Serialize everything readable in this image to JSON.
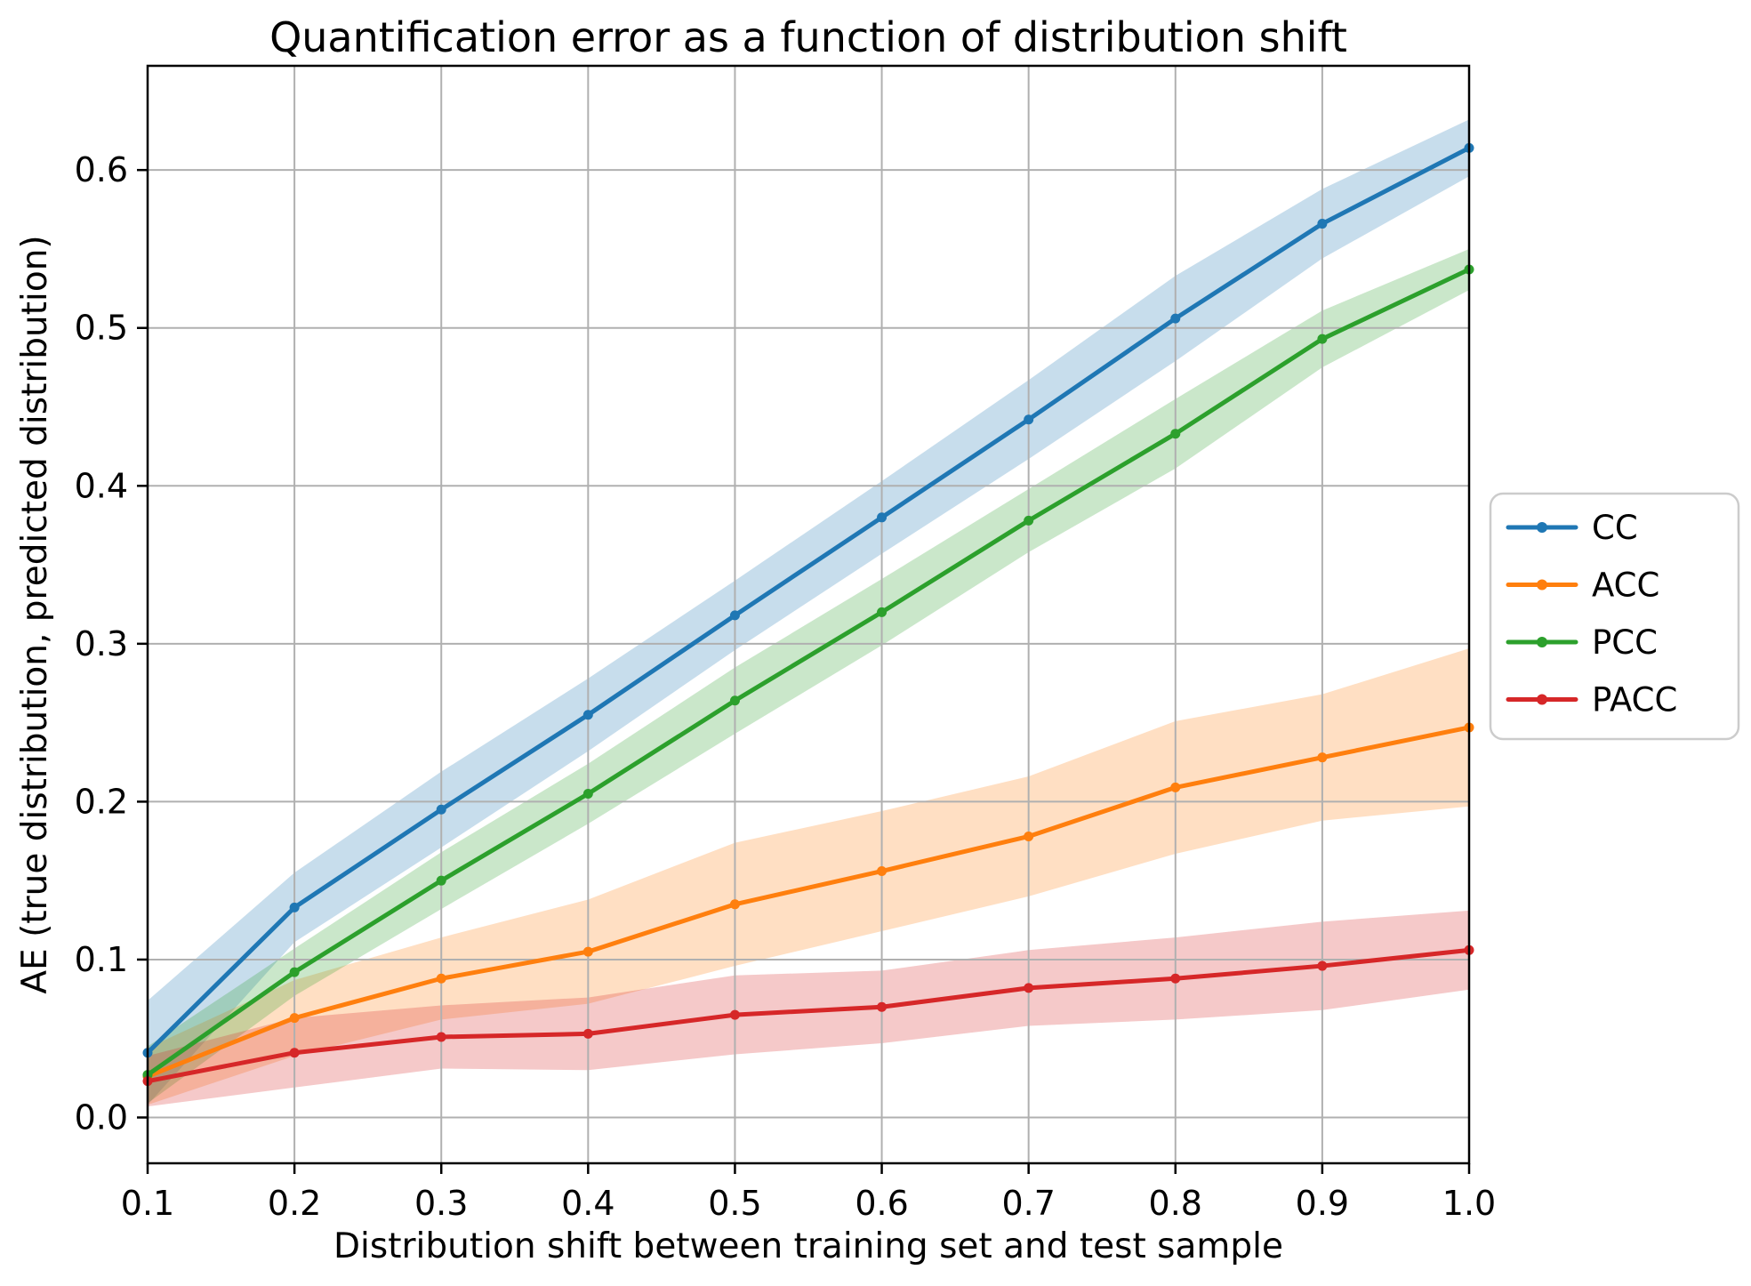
{
  "page": {
    "background": "#ffffff"
  },
  "chart_data": {
    "type": "line",
    "title": "Quantification error as a function of distribution shift",
    "xlabel": "Distribution shift between training set and test sample",
    "ylabel": "AE (true distribution, predicted distribution)",
    "x": [
      0.1,
      0.2,
      0.3,
      0.4,
      0.5,
      0.6,
      0.7,
      0.8,
      0.9,
      1.0
    ],
    "xlim": [
      0.1,
      1.0
    ],
    "ylim": [
      -0.029,
      0.666
    ],
    "xticks": [
      0.1,
      0.2,
      0.3,
      0.4,
      0.5,
      0.6,
      0.7,
      0.8,
      0.9,
      1.0
    ],
    "xtick_labels": [
      "0.1",
      "0.2",
      "0.3",
      "0.4",
      "0.5",
      "0.6",
      "0.7",
      "0.8",
      "0.9",
      "1.0"
    ],
    "yticks": [
      0.0,
      0.1,
      0.2,
      0.3,
      0.4,
      0.5,
      0.6
    ],
    "ytick_labels": [
      "0.0",
      "0.1",
      "0.2",
      "0.3",
      "0.4",
      "0.5",
      "0.6"
    ],
    "grid": true,
    "grid_color": "#b0b0b0",
    "spine_color": "#000000",
    "band_opacity": 0.25,
    "legend": {
      "position": "outside-right",
      "items": [
        "CC",
        "ACC",
        "PCC",
        "PACC"
      ],
      "border_color": "#cccccc",
      "background": "#ffffff"
    },
    "series": [
      {
        "name": "CC",
        "color": "#1f77b4",
        "values": [
          0.041,
          0.133,
          0.195,
          0.255,
          0.318,
          0.38,
          0.442,
          0.506,
          0.566,
          0.614
        ],
        "band_lower": [
          0.008,
          0.111,
          0.171,
          0.232,
          0.296,
          0.357,
          0.417,
          0.479,
          0.544,
          0.596
        ],
        "band_upper": [
          0.074,
          0.155,
          0.219,
          0.278,
          0.34,
          0.403,
          0.467,
          0.533,
          0.588,
          0.632
        ]
      },
      {
        "name": "ACC",
        "color": "#ff7f0e",
        "values": [
          0.026,
          0.063,
          0.088,
          0.105,
          0.135,
          0.156,
          0.178,
          0.209,
          0.228,
          0.247
        ],
        "band_lower": [
          0.008,
          0.039,
          0.062,
          0.072,
          0.096,
          0.118,
          0.14,
          0.167,
          0.188,
          0.197
        ],
        "band_upper": [
          0.044,
          0.087,
          0.114,
          0.138,
          0.174,
          0.194,
          0.216,
          0.251,
          0.268,
          0.297
        ]
      },
      {
        "name": "PCC",
        "color": "#2ca02c",
        "values": [
          0.027,
          0.092,
          0.15,
          0.205,
          0.264,
          0.32,
          0.378,
          0.433,
          0.493,
          0.537
        ],
        "band_lower": [
          0.009,
          0.077,
          0.132,
          0.186,
          0.243,
          0.299,
          0.358,
          0.411,
          0.475,
          0.524
        ],
        "band_upper": [
          0.045,
          0.107,
          0.168,
          0.224,
          0.285,
          0.341,
          0.398,
          0.455,
          0.511,
          0.55
        ]
      },
      {
        "name": "PACC",
        "color": "#d62728",
        "values": [
          0.023,
          0.041,
          0.051,
          0.053,
          0.065,
          0.07,
          0.082,
          0.088,
          0.096,
          0.106
        ],
        "band_lower": [
          0.007,
          0.019,
          0.031,
          0.03,
          0.04,
          0.047,
          0.058,
          0.062,
          0.068,
          0.081
        ],
        "band_upper": [
          0.039,
          0.063,
          0.071,
          0.076,
          0.09,
          0.093,
          0.106,
          0.114,
          0.124,
          0.131
        ]
      }
    ]
  }
}
